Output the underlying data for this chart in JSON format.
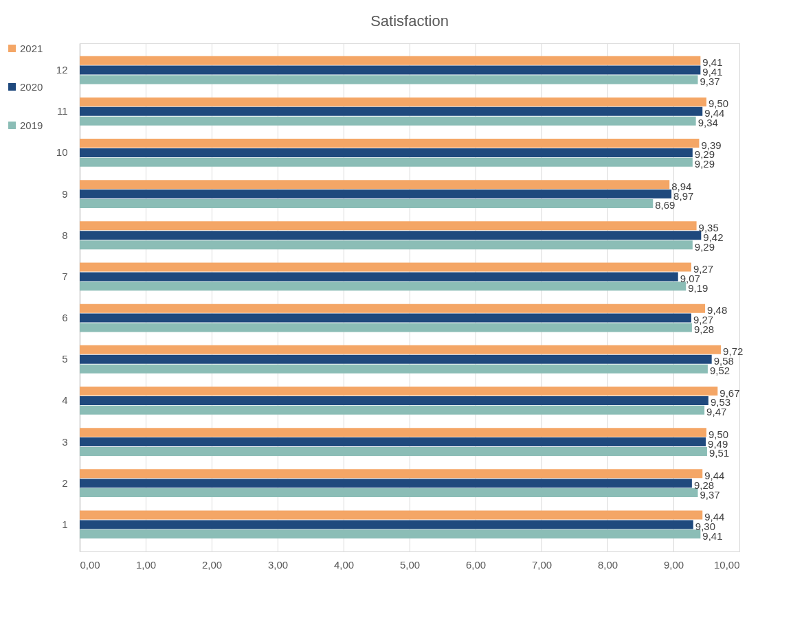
{
  "chart_data": {
    "type": "bar",
    "orientation": "horizontal",
    "title": "Satisfaction",
    "categories": [
      "12",
      "11",
      "10",
      "9",
      "8",
      "7",
      "6",
      "5",
      "4",
      "3",
      "2",
      "1"
    ],
    "series": [
      {
        "name": "2021",
        "color": "#f4a666",
        "values": [
          9.41,
          9.5,
          9.39,
          8.94,
          9.35,
          9.27,
          9.48,
          9.72,
          9.67,
          9.5,
          9.44,
          9.44
        ],
        "value_labels": [
          "9,41",
          "9,50",
          "9,39",
          "8,94",
          "9,35",
          "9,27",
          "9,48",
          "9,72",
          "9,67",
          "9,50",
          "9,44",
          "9,44"
        ]
      },
      {
        "name": "2020",
        "color": "#1f497d",
        "values": [
          9.41,
          9.44,
          9.29,
          8.97,
          9.42,
          9.07,
          9.27,
          9.58,
          9.53,
          9.49,
          9.28,
          9.3
        ],
        "value_labels": [
          "9,41",
          "9,44",
          "9,29",
          "8,97",
          "9,42",
          "9,07",
          "9,27",
          "9,58",
          "9,53",
          "9,49",
          "9,28",
          "9,30"
        ]
      },
      {
        "name": "2019",
        "color": "#8bbdb6",
        "values": [
          9.37,
          9.34,
          9.29,
          8.69,
          9.29,
          9.19,
          9.28,
          9.52,
          9.47,
          9.51,
          9.37,
          9.41
        ],
        "value_labels": [
          "9,37",
          "9,34",
          "9,29",
          "8,69",
          "9,29",
          "9,19",
          "9,28",
          "9,52",
          "9,47",
          "9,51",
          "9,37",
          "9,41"
        ]
      }
    ],
    "xlim": [
      0,
      10
    ],
    "xticks": [
      {
        "value": 0,
        "label": "0,00"
      },
      {
        "value": 1,
        "label": "1,00"
      },
      {
        "value": 2,
        "label": "2,00"
      },
      {
        "value": 3,
        "label": "3,00"
      },
      {
        "value": 4,
        "label": "4,00"
      },
      {
        "value": 5,
        "label": "5,00"
      },
      {
        "value": 6,
        "label": "6,00"
      },
      {
        "value": 7,
        "label": "7,00"
      },
      {
        "value": 8,
        "label": "8,00"
      },
      {
        "value": 9,
        "label": "9,00"
      },
      {
        "value": 10,
        "label": "10,00"
      }
    ],
    "grid": "x",
    "legend": "left"
  }
}
